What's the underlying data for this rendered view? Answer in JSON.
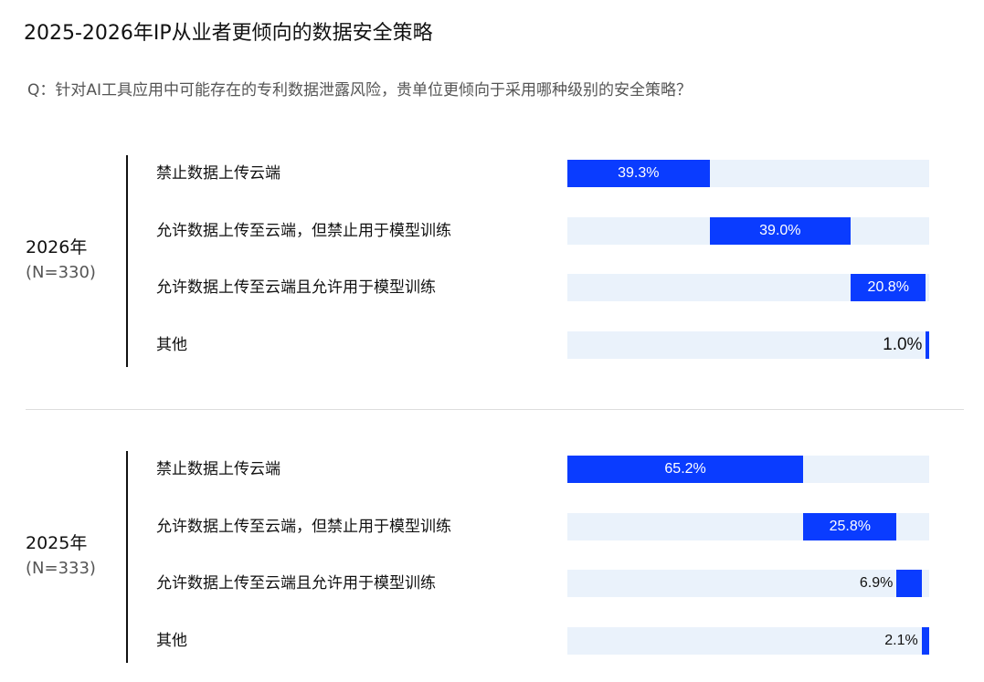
{
  "title": "2025-2026年IP从业者更倾向的数据安全策略",
  "question": "Q：针对AI工具应用中可能存在的专利数据泄露风险，贵单位更倾向于采用哪种级别的安全策略？",
  "colors": {
    "bar": "#0a3cff",
    "track": "#eaf2fb"
  },
  "chart_data": {
    "type": "bar",
    "orientation": "horizontal-stacked-waterfall",
    "categories": [
      "禁止数据上传云端",
      "允许数据上传至云端，但禁止用于模型训练",
      "允许数据上传至云端且允许用于模型训练",
      "其他"
    ],
    "groups": [
      {
        "year": "2026年",
        "n": "(N=330)",
        "values": [
          39.3,
          39.0,
          20.8,
          1.0
        ],
        "labels": [
          "39.3%",
          "39.0%",
          "20.8%",
          "1.0%"
        ]
      },
      {
        "year": "2025年",
        "n": "(N=333)",
        "values": [
          65.2,
          25.8,
          6.9,
          2.1
        ],
        "labels": [
          "65.2%",
          "25.8%",
          "6.9%",
          "2.1%"
        ]
      }
    ]
  }
}
